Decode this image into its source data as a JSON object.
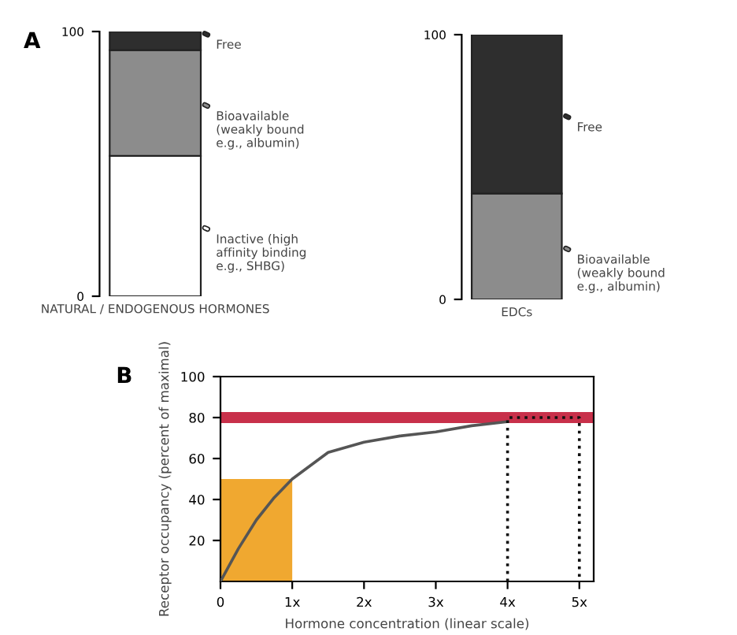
{
  "chart_data": [
    {
      "type": "bar",
      "stacked": true,
      "legend": "right",
      "categories": [
        "NATURAL / ENDOGENOUS HORMONES"
      ],
      "ylim": [
        0,
        100
      ],
      "yticks": [
        0,
        100
      ],
      "annotations": [
        "A"
      ],
      "series": [
        {
          "name": "Inactive (high\naffinity binding\ne.g., SHBG)",
          "color": "#ffffff",
          "values": [
            53
          ]
        },
        {
          "name": "Bioavailable\n(weakly bound\ne.g., albumin)",
          "color": "#8c8c8c",
          "values": [
            40
          ]
        },
        {
          "name": "Free",
          "color": "#2e2e2e",
          "values": [
            7
          ]
        }
      ]
    },
    {
      "type": "bar",
      "stacked": true,
      "legend": "right",
      "categories": [
        "EDCs"
      ],
      "ylim": [
        0,
        100
      ],
      "yticks": [
        0,
        100
      ],
      "series": [
        {
          "name": "Bioavailable\n(weakly bound\ne.g., albumin)",
          "color": "#8c8c8c",
          "values": [
            40
          ]
        },
        {
          "name": "Free",
          "color": "#2e2e2e",
          "values": [
            60
          ]
        }
      ]
    },
    {
      "type": "line",
      "xlabel": "Hormone concentration (linear scale)",
      "ylabel": "Receptor occupancy (percent of maximal)",
      "annotations": [
        "B"
      ],
      "xlim": [
        0,
        5.2
      ],
      "xticks": [
        {
          "value": 0,
          "label": "0"
        },
        {
          "value": 1,
          "label": "1x"
        },
        {
          "value": 2,
          "label": "2x"
        },
        {
          "value": 3,
          "label": "3x"
        },
        {
          "value": 4,
          "label": "4x"
        },
        {
          "value": 5,
          "label": "5x"
        }
      ],
      "ylim": [
        0,
        100
      ],
      "yticks": [
        20,
        40,
        60,
        80,
        100
      ],
      "ref_lines": [
        {
          "axis": "y",
          "value": 80,
          "color": "#c8304a"
        }
      ],
      "series": [
        {
          "type": "area",
          "color": "#f0a830",
          "x": [
            0,
            1
          ],
          "values": [
            50,
            50
          ]
        },
        {
          "type": "line",
          "color": "#555555",
          "x": [
            0,
            0.25,
            0.5,
            0.75,
            1,
            1.5,
            2,
            2.5,
            3,
            3.5,
            4
          ],
          "values": [
            0,
            16,
            30,
            41,
            50,
            63,
            68,
            71,
            73,
            76,
            78
          ]
        },
        {
          "type": "line",
          "line_style": "dotted",
          "color": "#111111",
          "x": [
            4,
            4,
            5,
            5
          ],
          "values": [
            0,
            80,
            80,
            0
          ]
        }
      ]
    }
  ]
}
